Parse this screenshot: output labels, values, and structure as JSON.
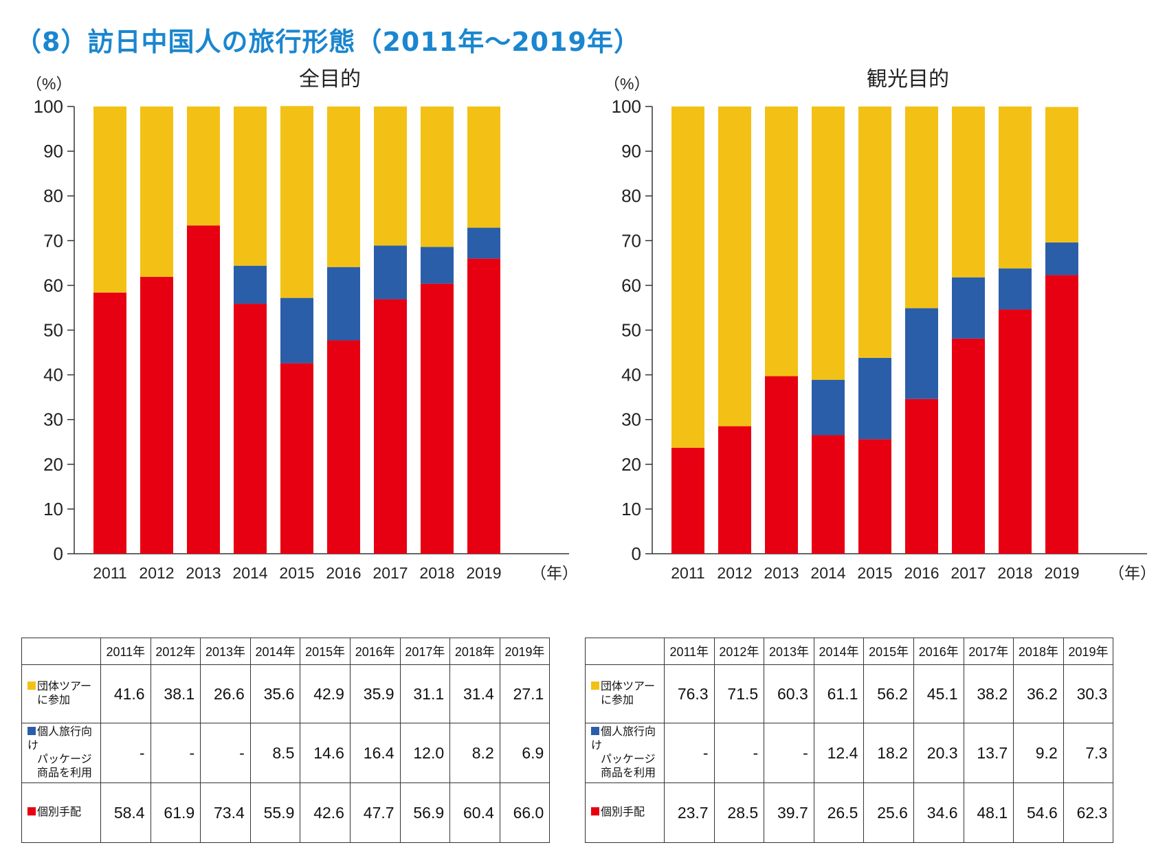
{
  "page": {
    "title": "（8）訪日中国人の旅行形態（2011年〜2019年）"
  },
  "colors": {
    "group_tour": "#f3c116",
    "package": "#2a5ea9",
    "individual": "#e60012",
    "title": "#1a86cf"
  },
  "chart_data": [
    {
      "type": "bar",
      "stacked": true,
      "title": "全目的",
      "ylabel": "（%）",
      "xunit": "（年）",
      "ylim": [
        0,
        100
      ],
      "yticks": [
        "0",
        "10",
        "20",
        "30",
        "40",
        "50",
        "60",
        "70",
        "80",
        "90",
        "100"
      ],
      "categories": [
        "2011",
        "2012",
        "2013",
        "2014",
        "2015",
        "2016",
        "2017",
        "2018",
        "2019"
      ],
      "series": [
        {
          "name": "個別手配",
          "values": [
            58.4,
            61.9,
            73.4,
            55.9,
            42.6,
            47.7,
            56.9,
            60.4,
            66.0
          ]
        },
        {
          "name": "個人旅行向けパッケージ商品を利用",
          "values": [
            0,
            0,
            0,
            8.5,
            14.6,
            16.4,
            12.0,
            8.2,
            6.9
          ]
        },
        {
          "name": "団体ツアーに参加",
          "values": [
            41.6,
            38.1,
            26.6,
            35.6,
            42.9,
            35.9,
            31.1,
            31.4,
            27.1
          ]
        }
      ]
    },
    {
      "type": "bar",
      "stacked": true,
      "title": "観光目的",
      "ylabel": "（%）",
      "xunit": "（年）",
      "ylim": [
        0,
        100
      ],
      "yticks": [
        "0",
        "10",
        "20",
        "30",
        "40",
        "50",
        "60",
        "70",
        "80",
        "90",
        "100"
      ],
      "categories": [
        "2011",
        "2012",
        "2013",
        "2014",
        "2015",
        "2016",
        "2017",
        "2018",
        "2019"
      ],
      "series": [
        {
          "name": "個別手配",
          "values": [
            23.7,
            28.5,
            39.7,
            26.5,
            25.6,
            34.6,
            48.1,
            54.6,
            62.3
          ]
        },
        {
          "name": "個人旅行向けパッケージ商品を利用",
          "values": [
            0,
            0,
            0,
            12.4,
            18.2,
            20.3,
            13.7,
            9.2,
            7.3
          ]
        },
        {
          "name": "団体ツアーに参加",
          "values": [
            76.3,
            71.5,
            60.3,
            61.1,
            56.2,
            45.1,
            38.2,
            36.2,
            30.3
          ]
        }
      ]
    }
  ],
  "tables": [
    {
      "headers": [
        "2011年",
        "2012年",
        "2013年",
        "2014年",
        "2015年",
        "2016年",
        "2017年",
        "2018年",
        "2019年"
      ],
      "rows": [
        {
          "lines": [
            "団体ツアー",
            "に参加"
          ],
          "color": "#f3c116",
          "cells": [
            "41.6",
            "38.1",
            "26.6",
            "35.6",
            "42.9",
            "35.9",
            "31.1",
            "31.4",
            "27.1"
          ]
        },
        {
          "lines": [
            "個人旅行向け",
            "パッケージ",
            "商品を利用"
          ],
          "color": "#2a5ea9",
          "cells": [
            "-",
            "-",
            "-",
            "8.5",
            "14.6",
            "16.4",
            "12.0",
            "8.2",
            "6.9"
          ]
        },
        {
          "lines": [
            "個別手配"
          ],
          "color": "#e60012",
          "cells": [
            "58.4",
            "61.9",
            "73.4",
            "55.9",
            "42.6",
            "47.7",
            "56.9",
            "60.4",
            "66.0"
          ]
        }
      ]
    },
    {
      "headers": [
        "2011年",
        "2012年",
        "2013年",
        "2014年",
        "2015年",
        "2016年",
        "2017年",
        "2018年",
        "2019年"
      ],
      "rows": [
        {
          "lines": [
            "団体ツアー",
            "に参加"
          ],
          "color": "#f3c116",
          "cells": [
            "76.3",
            "71.5",
            "60.3",
            "61.1",
            "56.2",
            "45.1",
            "38.2",
            "36.2",
            "30.3"
          ]
        },
        {
          "lines": [
            "個人旅行向け",
            "パッケージ",
            "商品を利用"
          ],
          "color": "#2a5ea9",
          "cells": [
            "-",
            "-",
            "-",
            "12.4",
            "18.2",
            "20.3",
            "13.7",
            "9.2",
            "7.3"
          ]
        },
        {
          "lines": [
            "個別手配"
          ],
          "color": "#e60012",
          "cells": [
            "23.7",
            "28.5",
            "39.7",
            "26.5",
            "25.6",
            "34.6",
            "48.1",
            "54.6",
            "62.3"
          ]
        }
      ]
    }
  ]
}
